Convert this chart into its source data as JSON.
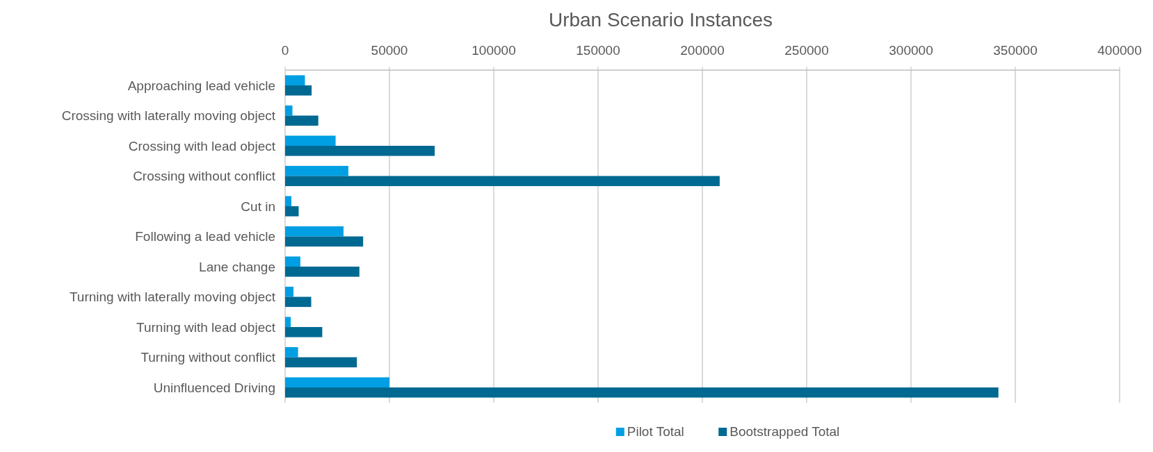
{
  "chart_data": {
    "type": "bar",
    "title": "Urban Scenario Instances",
    "orientation": "horizontal",
    "categories": [
      "Approaching lead vehicle",
      "Crossing with laterally moving object",
      "Crossing with lead object",
      "Crossing without conflict",
      "Cut in",
      "Following a lead vehicle",
      "Lane change",
      "Turning with laterally moving object",
      "Turning with lead object",
      "Turning without conflict",
      "Uninfluenced Driving"
    ],
    "series": [
      {
        "name": "Pilot Total",
        "color": "#009fe3",
        "values": [
          9500,
          3500,
          24200,
          30300,
          3000,
          28000,
          7300,
          4000,
          2700,
          6200,
          50000
        ]
      },
      {
        "name": "Bootstrapped Total",
        "color": "#006991",
        "values": [
          12700,
          15900,
          71700,
          208300,
          6500,
          37400,
          35600,
          12500,
          17800,
          34400,
          341900
        ]
      }
    ],
    "xlim": [
      0,
      400000
    ],
    "xticks": [
      0,
      50000,
      100000,
      150000,
      200000,
      250000,
      300000,
      350000,
      400000
    ],
    "grid": "x",
    "legend": "bottom"
  }
}
